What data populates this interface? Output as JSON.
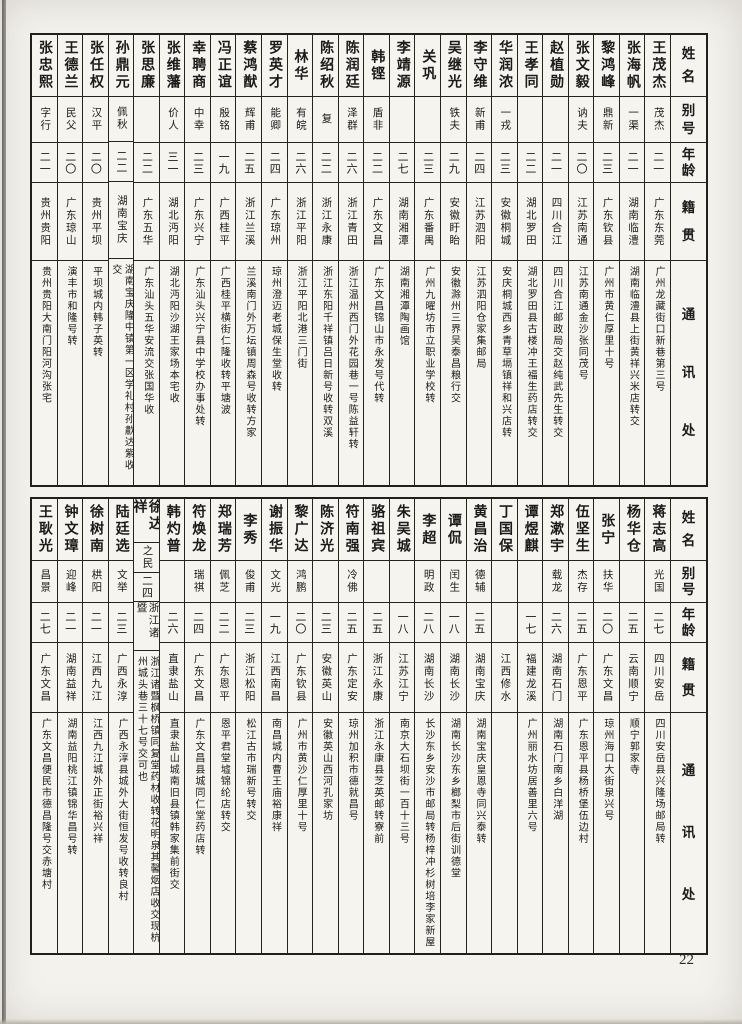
{
  "page": {
    "number": "22",
    "background": "#f4f2ed",
    "ink": "#1b1b1b"
  },
  "headers": {
    "name": "姓名",
    "alias": "别号",
    "age": "年龄",
    "native": "籍贯",
    "address": "通讯处"
  },
  "tables": [
    {
      "people": [
        {
          "name": "王茂杰",
          "alias": "茂杰",
          "age": "二一",
          "native": "广东东莞",
          "address": "广州龙藏街口新巷第三号"
        },
        {
          "name": "张海帆",
          "alias": "一渠",
          "age": "二一",
          "native": "湖南临澧",
          "address": "湖南临澧县上街黄祥兴米店转交"
        },
        {
          "name": "黎鸿峰",
          "alias": "鼎新",
          "age": "二三",
          "native": "广东钦县",
          "address": "广州市黄仁厚里十号"
        },
        {
          "name": "张文毅",
          "alias": "讷夫",
          "age": "二〇",
          "native": "江苏南通",
          "address": "江苏南通金沙张同茂号"
        },
        {
          "name": "赵植勋",
          "alias": "",
          "age": "二一",
          "native": "四川合江",
          "address": "四川合江邮政局交赵纯武先生转交"
        },
        {
          "name": "王孝同",
          "alias": "",
          "age": "二二",
          "native": "湖北罗田",
          "address": "湖北罗田县古楼冲王福生药店转交"
        },
        {
          "name": "华润浓",
          "alias": "一戎",
          "age": "二三",
          "native": "安徽桐城",
          "address": "安庆桐城西乡青草塥镇祥和兴店转"
        },
        {
          "name": "李守维",
          "alias": "新甫",
          "age": "二四",
          "native": "江苏泗阳",
          "address": "江苏泗阳仓家集邮局"
        },
        {
          "name": "吴继光",
          "alias": "铁夫",
          "age": "二九",
          "native": "安徽盱眙",
          "address": "安徽滁州三界吴泰昌粮行交"
        },
        {
          "name": "关巩",
          "alias": "",
          "age": "二三",
          "native": "广东番禺",
          "address": "广州九曜坊市立职业学校转"
        },
        {
          "name": "李靖源",
          "alias": "",
          "age": "二七",
          "native": "湖南湘潭",
          "address": "湖南湘潭陶画馆"
        },
        {
          "name": "韩铿",
          "alias": "盾非",
          "age": "二二",
          "native": "广东文昌",
          "address": "广东文昌锦山市永发号代转"
        },
        {
          "name": "陈润廷",
          "alias": "泽群",
          "age": "二六",
          "native": "浙江青田",
          "address": "浙江温州西门外花园巷一号陈益轩转"
        },
        {
          "name": "陈绍秋",
          "alias": "复",
          "age": "二二",
          "native": "浙江永康",
          "address": "浙江东阳千祥镇吕日新号收转双溪"
        },
        {
          "name": "林华",
          "alias": "有皖",
          "age": "二六",
          "native": "浙江平阳",
          "address": "浙江平阳北港三门街"
        },
        {
          "name": "罗英才",
          "alias": "能卿",
          "age": "二四",
          "native": "广东琼州",
          "address": "琼州澄迈老城保生堂收转"
        },
        {
          "name": "蔡鸿猷",
          "alias": "辉甫",
          "age": "二五",
          "native": "浙江兰溪",
          "address": "兰溪南门外万坛镇周森号收转方家"
        },
        {
          "name": "冯正谊",
          "alias": "殷铭",
          "age": "一九",
          "native": "广西桂平",
          "address": "广西桂平横街仁隆收转平塘波"
        },
        {
          "name": "幸聘商",
          "alias": "中幸",
          "age": "二三",
          "native": "广东兴宁",
          "address": "广东汕头兴宁县中学校办事处转"
        },
        {
          "name": "张维藩",
          "alias": "价人",
          "age": "三一",
          "native": "湖北沔阳",
          "address": "湖北沔阳沙湖王家场本宅收"
        },
        {
          "name": "张思廉",
          "alias": "",
          "age": "二二",
          "native": "广东五华",
          "address": "广东汕头五华安流交张国华收"
        },
        {
          "name": "孙鼎元",
          "alias": "佩秋",
          "age": "二二",
          "native": "湖南宝庆",
          "address": "湖南宝庆隆中镇第一区学礼村孙歗达紫收交"
        },
        {
          "name": "张任权",
          "alias": "汉平",
          "age": "二〇",
          "native": "贵州平坝",
          "address": "平坝城内韩子英转"
        },
        {
          "name": "王德兰",
          "alias": "民父",
          "age": "二〇",
          "native": "广东琼山",
          "address": "演丰市和隆号转"
        },
        {
          "name": "张忠熙",
          "alias": "字行",
          "age": "二一",
          "native": "贵州贵阳",
          "address": "贵州贵阳大南门阳河沟张宅"
        }
      ]
    },
    {
      "people": [
        {
          "name": "蒋志高",
          "alias": "光国",
          "age": "二七",
          "native": "四川安岳",
          "address": "四川安岳县兴隆场邮局转"
        },
        {
          "name": "杨华仓",
          "alias": "",
          "age": "二五",
          "native": "云南顺宁",
          "address": "顺宁郭家寺"
        },
        {
          "name": "张宁",
          "alias": "扶华",
          "age": "二〇",
          "native": "广东文昌",
          "address": "琼州海口大街泉兴号"
        },
        {
          "name": "伍坚生",
          "alias": "杰存",
          "age": "二五",
          "native": "广东恩平",
          "address": "广东恩平县杨桥堡伍边村"
        },
        {
          "name": "郑漱宇",
          "alias": "载龙",
          "age": "二六",
          "native": "湖南石门",
          "address": "湖南石门南乡白洋湖"
        },
        {
          "name": "谭煜麒",
          "alias": "",
          "age": "一七",
          "native": "福建龙溪",
          "address": "广州丽水坊居善里六号"
        },
        {
          "name": "丁国保",
          "alias": "",
          "age": "",
          "native": "江西修水",
          "address": ""
        },
        {
          "name": "黄昌治",
          "alias": "德辅",
          "age": "二五",
          "native": "湖南宝庆",
          "address": "湖南宝庆皇恩寺同兴泰转"
        },
        {
          "name": "谭侃",
          "alias": "闰生",
          "age": "一八",
          "native": "湖南长沙",
          "address": "湖南长沙东乡榔梨市后街训德堂"
        },
        {
          "name": "李超",
          "alias": "明政",
          "age": "二八",
          "native": "湖南长沙",
          "address": "长沙东乡安沙市邮局转杨梓冲杉树培李家新屋"
        },
        {
          "name": "朱吴城",
          "alias": "",
          "age": "一八",
          "native": "江苏江宁",
          "address": "南京大石坝街一百十三号"
        },
        {
          "name": "骆祖宾",
          "alias": "",
          "age": "二五",
          "native": "浙江永康",
          "address": "浙江永康县芝英邮转寮前"
        },
        {
          "name": "符南强",
          "alias": "冷佛",
          "age": "二五",
          "native": "广东定安",
          "address": "琼州加积市德就昌号"
        },
        {
          "name": "陈济光",
          "alias": "",
          "age": "二三",
          "native": "安徽英山",
          "address": "安徽英山西河孔家坊"
        },
        {
          "name": "黎广达",
          "alias": "鸿鹏",
          "age": "二〇",
          "native": "广东钦县",
          "address": "广州市黄沙仁厚里十号"
        },
        {
          "name": "谢振华",
          "alias": "文光",
          "age": "一九",
          "native": "江西南昌",
          "address": "南昌城内曹王庙裕康祥"
        },
        {
          "name": "李秀",
          "alias": "俊甫",
          "age": "二三",
          "native": "浙江松阳",
          "address": "松江古市瑞新号转交"
        },
        {
          "name": "郑瑞芳",
          "alias": "佩芝",
          "age": "二二",
          "native": "广东恩平",
          "address": "恩平君堂墟锦纶店转交"
        },
        {
          "name": "符焕龙",
          "alias": "瑞祺",
          "age": "二四",
          "native": "广东文昌",
          "address": "广东文昌县城同仁堂药店转"
        },
        {
          "name": "韩灼普",
          "alias": "",
          "age": "二六",
          "native": "直隶盐山",
          "address": "直隶盐山城南旧县镇韩家集前街交"
        },
        {
          "name": "徐达祥",
          "alias": "之民",
          "age": "二四",
          "native": "浙江诸暨",
          "address": "浙江诸暨枫桥镇同复堂药材收转花明泉其馨烟店收交现杭州城头巷三十七号交可也"
        },
        {
          "name": "陆廷选",
          "alias": "文举",
          "age": "二三",
          "native": "广西永淳",
          "address": "广西永淳县城外大街恒发号收转良村"
        },
        {
          "name": "徐树南",
          "alias": "栱阳",
          "age": "二一",
          "native": "江西九江",
          "address": "江西九江城外正街裕兴祥"
        },
        {
          "name": "钟文璋",
          "alias": "迎峰",
          "age": "二一",
          "native": "湖南益祥",
          "address": "湖南益阳桃江镇锦华昌号转"
        },
        {
          "name": "王耿光",
          "alias": "昌景",
          "age": "二七",
          "native": "广东文昌",
          "address": "广东文昌便民市德昌隆号交赤塘村"
        }
      ]
    }
  ]
}
